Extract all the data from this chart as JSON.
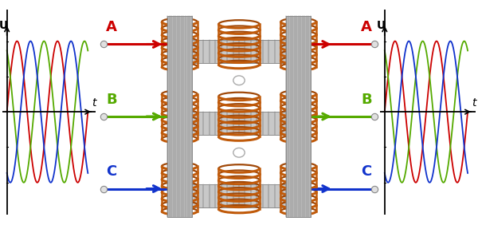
{
  "fig_width": 6.0,
  "fig_height": 2.92,
  "dpi": 100,
  "bg_color": "#ffffff",
  "phase_colors": [
    "#cc0000",
    "#55aa00",
    "#1133cc"
  ],
  "phase_labels": [
    "A",
    "B",
    "C"
  ],
  "coil_color": "#c05a0a",
  "coil_color2": "#a04808",
  "core_fill": "#b0b0b0",
  "core_edge": "#888888",
  "core_light": "#d0d0d0",
  "core_dark": "#909090",
  "lamination_color": "#999999",
  "wire_color": "#c05a0a",
  "terminal_color": "#cccccc",
  "sine_phases_deg": [
    0,
    120,
    240
  ],
  "axis_label_U": "U",
  "axis_label_t": "t"
}
